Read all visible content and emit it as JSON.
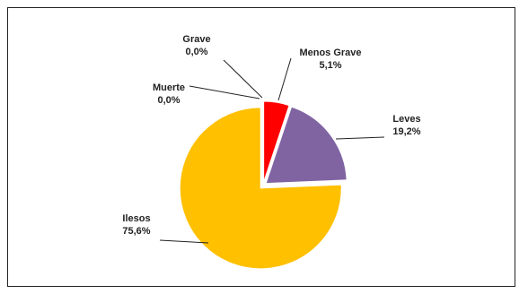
{
  "chart_data": {
    "type": "pie",
    "title": "",
    "slices": [
      {
        "name": "Menos Grave",
        "value": 5.1,
        "label_value": "5,1%",
        "color": "#ff0000"
      },
      {
        "name": "Leves",
        "value": 19.2,
        "label_value": "19,2%",
        "color": "#8064a2"
      },
      {
        "name": "Ilesos",
        "value": 75.6,
        "label_value": "75,6%",
        "color": "#ffc000"
      },
      {
        "name": "Muerte",
        "value": 0.0,
        "label_value": "0,0%",
        "color": "#c00000"
      },
      {
        "name": "Grave",
        "value": 0.0,
        "label_value": "0,0%",
        "color": "#7f7f7f"
      }
    ],
    "start_angle": "12 o'clock",
    "direction": "clockwise",
    "exploded": true,
    "legend": "none"
  }
}
